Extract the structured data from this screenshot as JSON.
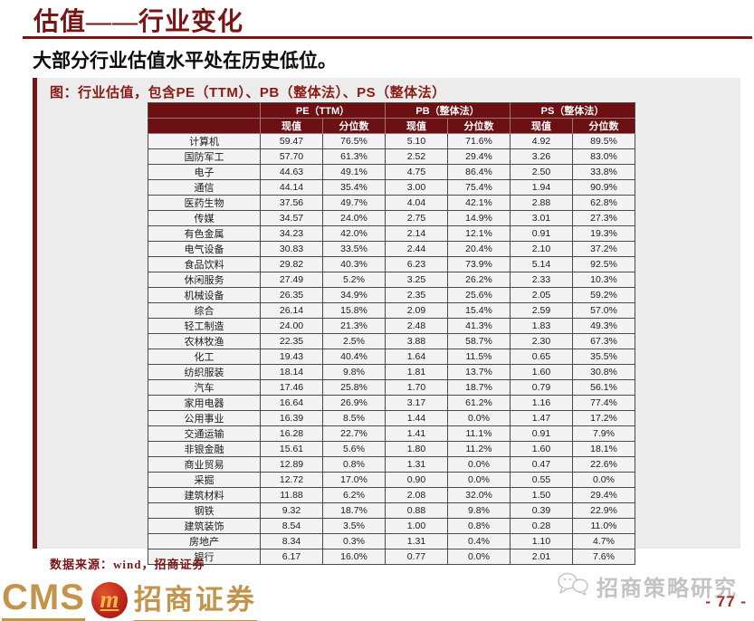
{
  "header": {
    "title": "估值——行业变化",
    "subtitle": "大部分行业估值水平处在历史低位。"
  },
  "figure": {
    "caption": "图：行业估值，包含PE（TTM）、PB（整体法）、PS（整体法）",
    "source_note": "数据来源：wind，招商证券"
  },
  "footer": {
    "logo_cms": "CMS",
    "logo_emblem": "m",
    "logo_cn": "招商证券",
    "wechat_badge": "招商策略研究",
    "page_number": "- 77 -"
  },
  "colors": {
    "maroon_title": "#7A1517",
    "table_header_bg": "#6D1013",
    "panel_bg": "#ECECEC",
    "row_bg": "#F3F3F3",
    "gold": "#C2944C",
    "emblem_red": "#C0271C",
    "watermark_gray": "#C3C3C3",
    "page_number_red": "#A32B26"
  },
  "chart_data": {
    "type": "table",
    "title": "行业估值，包含PE（TTM）、PB（整体法）、PS（整体法）",
    "row_header_label": "",
    "column_groups": [
      "PE（TTM）",
      "PB（整体法）",
      "PS（整体法）"
    ],
    "sub_columns": [
      "现值",
      "分位数"
    ],
    "rows": [
      [
        "计算机",
        "59.47",
        "76.5%",
        "5.10",
        "71.6%",
        "4.92",
        "89.5%"
      ],
      [
        "国防军工",
        "57.70",
        "61.3%",
        "2.52",
        "29.4%",
        "3.26",
        "83.0%"
      ],
      [
        "电子",
        "44.63",
        "49.1%",
        "4.75",
        "86.4%",
        "2.50",
        "33.8%"
      ],
      [
        "通信",
        "44.14",
        "35.4%",
        "3.00",
        "75.4%",
        "1.94",
        "90.9%"
      ],
      [
        "医药生物",
        "37.56",
        "49.7%",
        "4.04",
        "42.1%",
        "2.88",
        "62.8%"
      ],
      [
        "传媒",
        "34.57",
        "24.0%",
        "2.75",
        "14.9%",
        "3.01",
        "27.3%"
      ],
      [
        "有色金属",
        "34.23",
        "42.0%",
        "2.14",
        "12.1%",
        "0.91",
        "19.3%"
      ],
      [
        "电气设备",
        "30.83",
        "33.5%",
        "2.44",
        "20.4%",
        "2.10",
        "37.2%"
      ],
      [
        "食品饮料",
        "29.82",
        "40.3%",
        "6.23",
        "73.9%",
        "5.14",
        "92.5%"
      ],
      [
        "休闲服务",
        "27.49",
        "5.2%",
        "3.25",
        "26.2%",
        "2.33",
        "10.3%"
      ],
      [
        "机械设备",
        "26.35",
        "34.9%",
        "2.35",
        "25.6%",
        "2.05",
        "59.2%"
      ],
      [
        "综合",
        "26.14",
        "15.8%",
        "2.09",
        "15.4%",
        "2.59",
        "57.0%"
      ],
      [
        "轻工制造",
        "24.00",
        "21.3%",
        "2.48",
        "41.3%",
        "1.83",
        "49.3%"
      ],
      [
        "农林牧渔",
        "22.35",
        "2.5%",
        "3.88",
        "58.7%",
        "2.30",
        "67.3%"
      ],
      [
        "化工",
        "19.43",
        "40.4%",
        "1.64",
        "11.5%",
        "0.65",
        "35.5%"
      ],
      [
        "纺织服装",
        "18.14",
        "9.8%",
        "1.81",
        "13.7%",
        "1.60",
        "30.8%"
      ],
      [
        "汽车",
        "17.46",
        "25.8%",
        "1.70",
        "18.7%",
        "0.79",
        "56.1%"
      ],
      [
        "家用电器",
        "16.64",
        "26.9%",
        "3.17",
        "61.2%",
        "1.16",
        "77.4%"
      ],
      [
        "公用事业",
        "16.39",
        "8.5%",
        "1.44",
        "0.0%",
        "1.47",
        "17.2%"
      ],
      [
        "交通运输",
        "16.28",
        "22.7%",
        "1.41",
        "11.1%",
        "0.91",
        "7.9%"
      ],
      [
        "非银金融",
        "15.61",
        "5.6%",
        "1.80",
        "11.2%",
        "1.60",
        "18.1%"
      ],
      [
        "商业贸易",
        "12.89",
        "0.8%",
        "1.31",
        "0.0%",
        "0.47",
        "22.6%"
      ],
      [
        "采掘",
        "12.72",
        "17.0%",
        "0.90",
        "0.0%",
        "0.55",
        "0.0%"
      ],
      [
        "建筑材料",
        "11.88",
        "6.2%",
        "2.08",
        "32.0%",
        "1.50",
        "29.4%"
      ],
      [
        "钢铁",
        "9.32",
        "18.7%",
        "0.88",
        "9.8%",
        "0.39",
        "22.9%"
      ],
      [
        "建筑装饰",
        "8.54",
        "3.5%",
        "1.00",
        "0.8%",
        "0.28",
        "11.0%"
      ],
      [
        "房地产",
        "8.34",
        "0.3%",
        "1.31",
        "0.4%",
        "1.10",
        "4.7%"
      ],
      [
        "银行",
        "6.17",
        "16.0%",
        "0.77",
        "0.0%",
        "2.01",
        "7.6%"
      ]
    ]
  }
}
